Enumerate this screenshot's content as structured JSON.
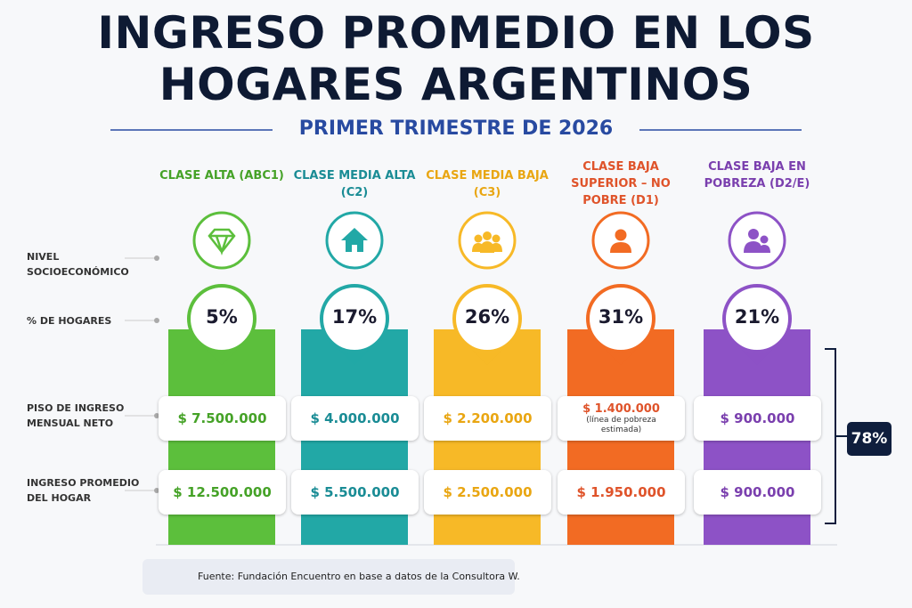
{
  "header": {
    "title": "INGRESO PROMEDIO EN LOS HOGARES ARGENTINOS",
    "subtitle": "PRIMER TRIMESTRE DE 2026"
  },
  "row_labels": [
    "NIVEL SOCIOECONÓMICO",
    "% DE HOGARES",
    "PISO DE INGRESO MENSUAL NETO",
    "INGRESO PROMEDIO DEL HOGAR"
  ],
  "classes": [
    {
      "name": "CLASE ALTA (ABC1)",
      "share": "5%",
      "floor": "$ 7.500.000",
      "average": "$ 12.500.000",
      "color": "#5cbf3c",
      "text_color": "#45a227"
    },
    {
      "name": "CLASE MEDIA ALTA (C2)",
      "share": "17%",
      "floor": "$ 4.000.000",
      "average": "$ 5.500.000",
      "color": "#22a8a6",
      "text_color": "#1a8c95"
    },
    {
      "name": "CLASE MEDIA BAJA (C3)",
      "share": "26%",
      "floor": "$ 2.200.000",
      "average": "$ 2.500.000",
      "color": "#f7b927",
      "text_color": "#e9a612"
    },
    {
      "name": "CLASE BAJA SUPERIOR – NO POBRE (D1)",
      "share": "31%",
      "floor": "$ 1.400.000",
      "floor_note": "(línea de pobreza estimada)",
      "average": "$ 1.950.000",
      "color": "#f26b23",
      "text_color": "#df532a"
    },
    {
      "name": "CLASE BAJA EN POBREZA (D2/E)",
      "share": "21%",
      "floor": "$ 900.000",
      "average": "$ 900.000",
      "color": "#8d52c6",
      "text_color": "#7a3fae"
    }
  ],
  "bracket_total": "78%",
  "source": "Fuente: Fundación Encuentro en base a datos de la Consultora W."
}
